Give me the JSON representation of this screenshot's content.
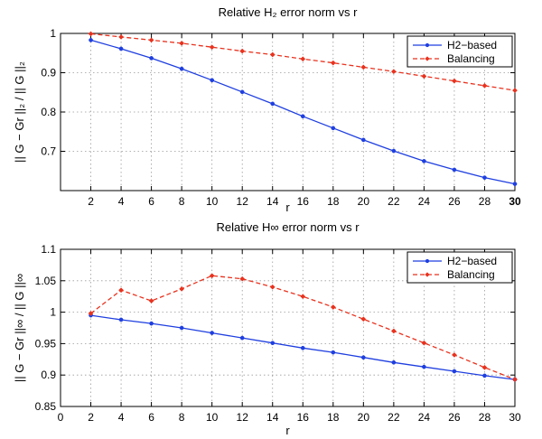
{
  "chart_data": [
    {
      "type": "line",
      "title": "Relative H₂ error norm vs r",
      "xlabel": "r",
      "ylabel": "|| G − Gr ||₂ / || G ||₂",
      "xlim": [
        0,
        30
      ],
      "ylim": [
        0.6,
        1.0
      ],
      "xticks": [
        2,
        4,
        6,
        8,
        10,
        12,
        14,
        16,
        18,
        20,
        22,
        24,
        26,
        28,
        30
      ],
      "yticks": [
        0.7,
        0.8,
        0.9,
        1.0
      ],
      "ytick_labels": [
        "0.7",
        "0.8",
        "0.9",
        "1"
      ],
      "grid": true,
      "legend_position": "top-right",
      "x": [
        2,
        4,
        6,
        8,
        10,
        12,
        14,
        16,
        18,
        20,
        22,
        24,
        26,
        28,
        30
      ],
      "series": [
        {
          "name": "H2−based",
          "color": "#1f3fe0",
          "style": "solid",
          "values": [
            0.983,
            0.961,
            0.937,
            0.91,
            0.881,
            0.851,
            0.821,
            0.789,
            0.759,
            0.729,
            0.701,
            0.675,
            0.653,
            0.633,
            0.617
          ]
        },
        {
          "name": "Balancing",
          "color": "#e8321e",
          "style": "dashed",
          "values": [
            0.999,
            0.991,
            0.983,
            0.975,
            0.965,
            0.955,
            0.946,
            0.935,
            0.925,
            0.914,
            0.903,
            0.891,
            0.879,
            0.867,
            0.855
          ]
        }
      ]
    },
    {
      "type": "line",
      "title": "Relative H∞ error norm vs r",
      "xlabel": "r",
      "ylabel": "|| G − Gr ||∞ / || G ||∞",
      "xlim": [
        0,
        30
      ],
      "ylim": [
        0.85,
        1.1
      ],
      "xticks": [
        0,
        2,
        4,
        6,
        8,
        10,
        12,
        14,
        16,
        18,
        20,
        22,
        24,
        26,
        28,
        30
      ],
      "yticks": [
        0.85,
        0.9,
        0.95,
        1.0,
        1.05,
        1.1
      ],
      "ytick_labels": [
        "0.85",
        "0.9",
        "0.95",
        "1",
        "1.05",
        "1.1"
      ],
      "grid": true,
      "legend_position": "top-right",
      "x": [
        2,
        4,
        6,
        8,
        10,
        12,
        14,
        16,
        18,
        20,
        22,
        24,
        26,
        28,
        30
      ],
      "series": [
        {
          "name": "H2−based",
          "color": "#1f3fe0",
          "style": "solid",
          "values": [
            0.995,
            0.988,
            0.982,
            0.975,
            0.967,
            0.959,
            0.951,
            0.943,
            0.936,
            0.928,
            0.92,
            0.913,
            0.906,
            0.899,
            0.893
          ]
        },
        {
          "name": "Balancing",
          "color": "#e8321e",
          "style": "dashed",
          "values": [
            0.998,
            1.035,
            1.018,
            1.037,
            1.058,
            1.053,
            1.04,
            1.025,
            1.008,
            0.989,
            0.97,
            0.951,
            0.932,
            0.912,
            0.893
          ]
        }
      ]
    }
  ]
}
